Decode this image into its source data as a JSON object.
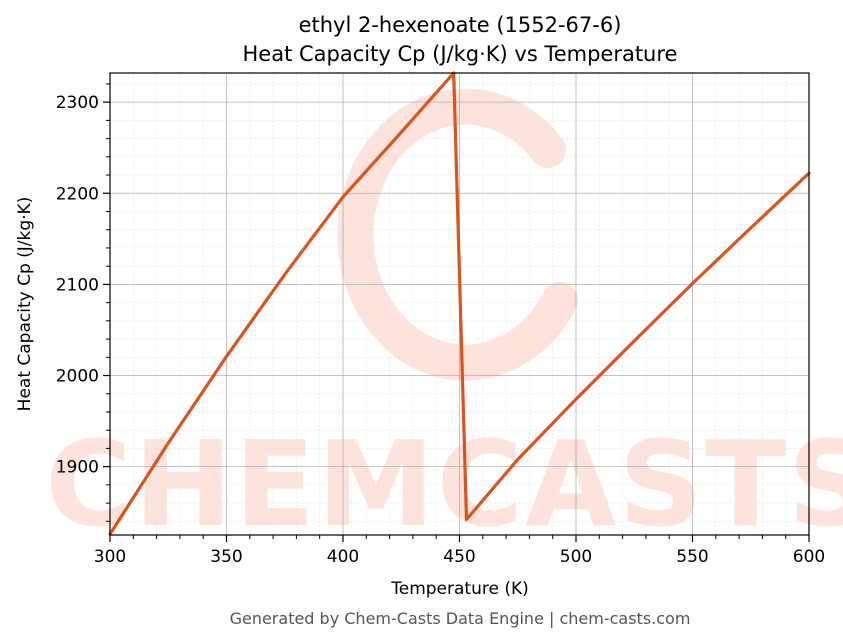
{
  "chart_data": {
    "type": "line",
    "title_line1": "ethyl 2-hexenoate (1552-67-6)",
    "title_line2": "Heat Capacity Cp (J/kg·K) vs Temperature",
    "xlabel": "Temperature (K)",
    "ylabel": "Heat Capacity Cp (J/kg·K)",
    "xlim": [
      300,
      600
    ],
    "ylim": [
      1825,
      2332
    ],
    "xticks": [
      300,
      350,
      400,
      450,
      500,
      550,
      600
    ],
    "yticks": [
      1900,
      2000,
      2100,
      2200,
      2300
    ],
    "grid": true,
    "line_color": "#d9541e",
    "series": [
      {
        "x": [
          300,
          325,
          350,
          375,
          400,
          425,
          447.5,
          453,
          475,
          500,
          525,
          550,
          575,
          600
        ],
        "values": [
          1826,
          1926,
          2021,
          2111,
          2196,
          2267,
          2332,
          1842,
          1908,
          1974,
          2038,
          2101,
          2162,
          2222
        ]
      }
    ]
  },
  "watermark": "CHEMCASTS",
  "footer": "Generated by Chem-Casts Data Engine | chem-casts.com"
}
